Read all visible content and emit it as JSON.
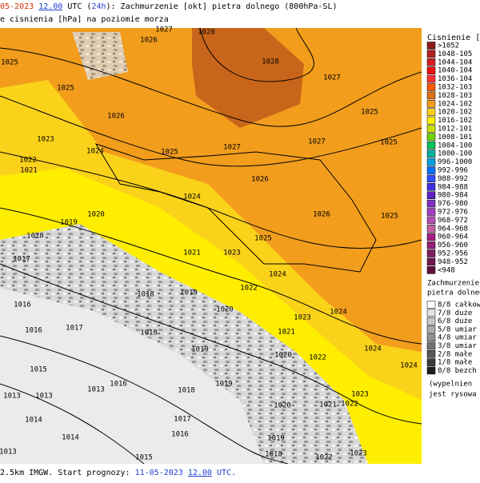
{
  "header": {
    "line1": [
      "05-2023",
      "12.00",
      "UTC (",
      "24h",
      "): Zachmurzenie [okt] pietra dolnego (800hPa-SL)"
    ],
    "line2": "e cisnienia [hPa] na poziomie morza"
  },
  "footer": [
    "2.5km IMGW. Start prognozy:",
    "11-05-2023",
    "12.00",
    "UTC."
  ],
  "pressure_legend": {
    "title": "Cisnienie [hP",
    "items": [
      ">1052",
      "1048-105",
      "1044-104",
      "1040-104",
      "1036-104",
      "1032-103",
      "1028-103",
      "1024-102",
      "1020-102",
      "1016-102",
      "1012-101",
      "1008-101",
      "1004-100",
      "1000-100",
      "996-1000",
      "992-996",
      "988-992",
      "984-988",
      "980-984",
      "976-980",
      "972-976",
      "968-972",
      "964-968",
      "960-964",
      "956-960",
      "952-956",
      "948-952",
      "<948"
    ]
  },
  "cloud_legend": {
    "title": [
      "Zachmurzenie",
      "pietra dolneg"
    ],
    "items": [
      "8/8 całkow",
      "7/8 duże",
      "6/8 duże",
      "5/8 umiar",
      "4/8 umiar",
      "3/8 umiar",
      "2/8 małe",
      "1/8 małe",
      "0/8 bezch"
    ],
    "note": [
      "(wypelnien",
      "jest rysowa"
    ]
  },
  "isobar_labels": [
    1027,
    1028,
    1026,
    1025,
    1028,
    1027,
    1025,
    1026,
    1025,
    1023,
    1024,
    1025,
    1027,
    1027,
    1025,
    1022,
    1021,
    1026,
    1024,
    1020,
    1019,
    1026,
    1025,
    1018,
    1025,
    1021,
    1023,
    1017,
    1024,
    1018,
    1019,
    1022,
    1016,
    1020,
    1024,
    1023,
    1017,
    1016,
    1018,
    1021,
    1019,
    1024,
    1020,
    1022,
    1024,
    1015,
    1019,
    1016,
    1013,
    1018,
    1023,
    1013,
    1013,
    1022,
    1020,
    1021,
    1014,
    1017,
    1014,
    1016,
    1019,
    1013,
    1015,
    1018,
    1022,
    1023
  ]
}
